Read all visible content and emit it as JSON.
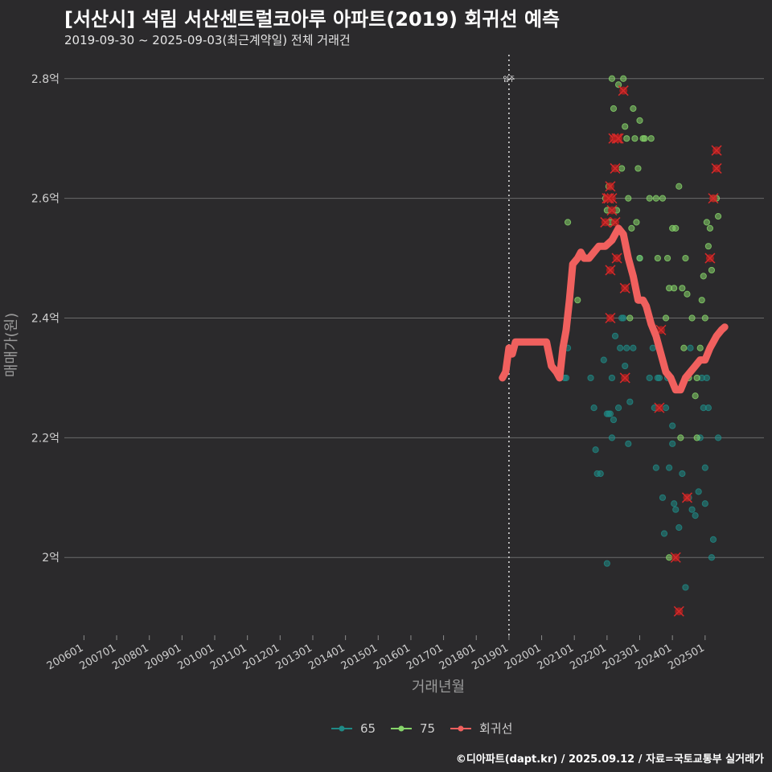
{
  "header": {
    "title": "[서산시] 석림 서산센트럴코아루 아파트(2019) 회귀선 예측",
    "subtitle": "2019-09-30 ~ 2025-09-03(최근계약일) 전체 거래건"
  },
  "footer": {
    "credit": "©디아파트(dapt.kr) / 2025.09.12 / 자료=국토교통부 실거래가"
  },
  "colors": {
    "background": "#2b2a2c",
    "grid": "#6b6b6b",
    "s65": "#1f8a86",
    "s75": "#86d46a",
    "regression": "#f0605e",
    "cancelled": "#d42a2a"
  },
  "chart_data": {
    "type": "scatter",
    "xlabel": "거래년월",
    "ylabel": "매매가(원)",
    "x_ticks": [
      "200601",
      "200701",
      "200801",
      "200901",
      "201001",
      "201101",
      "201201",
      "201301",
      "201401",
      "201501",
      "201601",
      "201701",
      "201801",
      "201901",
      "202001",
      "202101",
      "202201",
      "202301",
      "202401",
      "202501"
    ],
    "x_range": [
      2005.4,
      2026.8
    ],
    "y_ticks": [
      {
        "value": 2.0,
        "label": "2억"
      },
      {
        "value": 2.2,
        "label": "2.2억"
      },
      {
        "value": 2.4,
        "label": "2.4억"
      },
      {
        "value": 2.6,
        "label": "2.6억"
      },
      {
        "value": 2.8,
        "label": "2.8억"
      }
    ],
    "y_range": [
      1.87,
      2.84
    ],
    "y_unit": "억",
    "move_in_line": {
      "x": 2019.0,
      "label": "입주"
    },
    "legend": [
      {
        "name": "65",
        "color": "#1f8a86"
      },
      {
        "name": "75",
        "color": "#86d46a"
      },
      {
        "name": "회귀선",
        "color": "#f0605e"
      }
    ],
    "series": [
      {
        "name": "65",
        "points": [
          [
            2020.7,
            2.3
          ],
          [
            2020.75,
            2.3
          ],
          [
            2020.8,
            2.35
          ],
          [
            2021.5,
            2.3
          ],
          [
            2021.6,
            2.25
          ],
          [
            2021.65,
            2.18
          ],
          [
            2021.7,
            2.14
          ],
          [
            2021.8,
            2.14
          ],
          [
            2021.9,
            2.33
          ],
          [
            2022.0,
            2.24
          ],
          [
            2022.05,
            2.24
          ],
          [
            2022.1,
            2.24
          ],
          [
            2022.15,
            2.3
          ],
          [
            2022.0,
            1.99
          ],
          [
            2022.15,
            2.2
          ],
          [
            2022.2,
            2.23
          ],
          [
            2022.25,
            2.37
          ],
          [
            2022.35,
            2.25
          ],
          [
            2022.4,
            2.35
          ],
          [
            2022.45,
            2.4
          ],
          [
            2022.5,
            2.4
          ],
          [
            2022.55,
            2.32
          ],
          [
            2022.6,
            2.35
          ],
          [
            2022.65,
            2.19
          ],
          [
            2022.7,
            2.26
          ],
          [
            2022.8,
            2.35
          ],
          [
            2023.0,
            2.5
          ],
          [
            2023.3,
            2.3
          ],
          [
            2023.4,
            2.35
          ],
          [
            2023.45,
            2.25
          ],
          [
            2023.5,
            2.15
          ],
          [
            2023.55,
            2.3
          ],
          [
            2023.6,
            2.3
          ],
          [
            2023.7,
            2.1
          ],
          [
            2023.75,
            2.04
          ],
          [
            2023.8,
            2.25
          ],
          [
            2023.85,
            2.3
          ],
          [
            2023.9,
            2.15
          ],
          [
            2024.0,
            2.22
          ],
          [
            2024.05,
            2.09
          ],
          [
            2024.1,
            2.08
          ],
          [
            2024.2,
            2.05
          ],
          [
            2024.3,
            2.14
          ],
          [
            2024.4,
            1.95
          ],
          [
            2024.5,
            2.1
          ],
          [
            2024.55,
            2.35
          ],
          [
            2024.6,
            2.08
          ],
          [
            2024.7,
            2.07
          ],
          [
            2024.8,
            2.11
          ],
          [
            2024.85,
            2.2
          ],
          [
            2024.9,
            2.3
          ],
          [
            2024.95,
            2.25
          ],
          [
            2025.0,
            2.09
          ],
          [
            2025.05,
            2.3
          ],
          [
            2025.1,
            2.25
          ],
          [
            2025.2,
            2.0
          ],
          [
            2025.25,
            2.03
          ],
          [
            2025.4,
            2.2
          ],
          [
            2025.0,
            2.15
          ],
          [
            2024.0,
            2.19
          ]
        ]
      },
      {
        "name": "75",
        "points": [
          [
            2020.8,
            2.56
          ],
          [
            2021.1,
            2.43
          ],
          [
            2021.95,
            2.6
          ],
          [
            2022.0,
            2.58
          ],
          [
            2022.05,
            2.62
          ],
          [
            2022.1,
            2.56
          ],
          [
            2022.15,
            2.8
          ],
          [
            2022.2,
            2.75
          ],
          [
            2022.25,
            2.7
          ],
          [
            2022.3,
            2.58
          ],
          [
            2022.35,
            2.79
          ],
          [
            2022.5,
            2.8
          ],
          [
            2022.45,
            2.65
          ],
          [
            2022.55,
            2.72
          ],
          [
            2022.6,
            2.7
          ],
          [
            2022.65,
            2.6
          ],
          [
            2022.75,
            2.55
          ],
          [
            2022.8,
            2.75
          ],
          [
            2022.85,
            2.7
          ],
          [
            2022.9,
            2.56
          ],
          [
            2022.95,
            2.65
          ],
          [
            2023.0,
            2.73
          ],
          [
            2023.1,
            2.7
          ],
          [
            2023.15,
            2.7
          ],
          [
            2023.0,
            2.5
          ],
          [
            2023.3,
            2.6
          ],
          [
            2023.35,
            2.7
          ],
          [
            2023.5,
            2.6
          ],
          [
            2023.55,
            2.5
          ],
          [
            2023.7,
            2.6
          ],
          [
            2023.8,
            2.4
          ],
          [
            2023.85,
            2.5
          ],
          [
            2023.9,
            2.45
          ],
          [
            2024.0,
            2.55
          ],
          [
            2024.05,
            2.45
          ],
          [
            2024.1,
            2.55
          ],
          [
            2024.2,
            2.62
          ],
          [
            2024.3,
            2.45
          ],
          [
            2024.35,
            2.35
          ],
          [
            2024.4,
            2.5
          ],
          [
            2024.5,
            2.3
          ],
          [
            2024.6,
            2.4
          ],
          [
            2024.7,
            2.27
          ],
          [
            2024.75,
            2.3
          ],
          [
            2024.85,
            2.35
          ],
          [
            2024.9,
            2.43
          ],
          [
            2024.95,
            2.47
          ],
          [
            2025.0,
            2.4
          ],
          [
            2025.05,
            2.56
          ],
          [
            2025.1,
            2.52
          ],
          [
            2025.15,
            2.55
          ],
          [
            2025.2,
            2.48
          ],
          [
            2025.25,
            2.6
          ],
          [
            2025.35,
            2.6
          ],
          [
            2025.4,
            2.57
          ],
          [
            2023.9,
            2.0
          ],
          [
            2024.25,
            2.2
          ],
          [
            2024.75,
            2.2
          ],
          [
            2024.45,
            2.44
          ],
          [
            2022.7,
            2.4
          ]
        ]
      },
      {
        "name": "cancelled",
        "points": [
          [
            2021.95,
            2.56
          ],
          [
            2022.05,
            2.6
          ],
          [
            2022.1,
            2.62
          ],
          [
            2022.1,
            2.48
          ],
          [
            2022.15,
            2.6
          ],
          [
            2022.15,
            2.58
          ],
          [
            2022.2,
            2.7
          ],
          [
            2022.25,
            2.65
          ],
          [
            2022.3,
            2.7
          ],
          [
            2022.35,
            2.7
          ],
          [
            2022.1,
            2.4
          ],
          [
            2022.5,
            2.78
          ],
          [
            2022.55,
            2.45
          ],
          [
            2022.55,
            2.3
          ],
          [
            2023.65,
            2.38
          ],
          [
            2023.6,
            2.25
          ],
          [
            2024.1,
            2.0
          ],
          [
            2024.2,
            1.91
          ],
          [
            2024.45,
            2.1
          ],
          [
            2025.15,
            2.5
          ],
          [
            2025.25,
            2.6
          ],
          [
            2025.35,
            2.65
          ],
          [
            2025.35,
            2.68
          ],
          [
            2022.25,
            2.56
          ],
          [
            2022.3,
            2.5
          ],
          [
            2022.0,
            2.6
          ],
          [
            2022.05,
            2.6
          ]
        ]
      },
      {
        "name": "회귀선",
        "points": [
          [
            2018.8,
            2.3
          ],
          [
            2018.9,
            2.31
          ],
          [
            2019.0,
            2.35
          ],
          [
            2019.1,
            2.34
          ],
          [
            2019.2,
            2.36
          ],
          [
            2019.4,
            2.36
          ],
          [
            2019.6,
            2.36
          ],
          [
            2019.8,
            2.36
          ],
          [
            2020.0,
            2.36
          ],
          [
            2020.15,
            2.36
          ],
          [
            2020.3,
            2.32
          ],
          [
            2020.45,
            2.31
          ],
          [
            2020.55,
            2.3
          ],
          [
            2020.65,
            2.35
          ],
          [
            2020.75,
            2.38
          ],
          [
            2020.85,
            2.43
          ],
          [
            2020.95,
            2.49
          ],
          [
            2021.1,
            2.5
          ],
          [
            2021.2,
            2.51
          ],
          [
            2021.3,
            2.5
          ],
          [
            2021.45,
            2.5
          ],
          [
            2021.6,
            2.51
          ],
          [
            2021.75,
            2.52
          ],
          [
            2021.95,
            2.52
          ],
          [
            2022.15,
            2.53
          ],
          [
            2022.35,
            2.55
          ],
          [
            2022.5,
            2.54
          ],
          [
            2022.65,
            2.5
          ],
          [
            2022.8,
            2.47
          ],
          [
            2022.95,
            2.43
          ],
          [
            2023.1,
            2.43
          ],
          [
            2023.2,
            2.42
          ],
          [
            2023.35,
            2.39
          ],
          [
            2023.5,
            2.37
          ],
          [
            2023.65,
            2.34
          ],
          [
            2023.8,
            2.31
          ],
          [
            2023.95,
            2.3
          ],
          [
            2024.1,
            2.28
          ],
          [
            2024.25,
            2.28
          ],
          [
            2024.4,
            2.3
          ],
          [
            2024.55,
            2.31
          ],
          [
            2024.7,
            2.32
          ],
          [
            2024.85,
            2.33
          ],
          [
            2025.0,
            2.33
          ],
          [
            2025.15,
            2.35
          ],
          [
            2025.25,
            2.36
          ],
          [
            2025.35,
            2.37
          ],
          [
            2025.5,
            2.38
          ],
          [
            2025.6,
            2.385
          ]
        ]
      }
    ]
  }
}
